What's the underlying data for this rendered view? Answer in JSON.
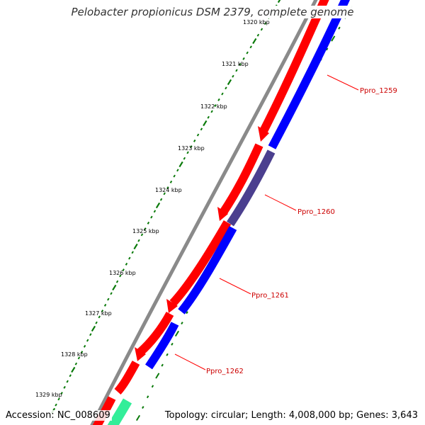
{
  "title": "Pelobacter propionicus DSM 2379, complete genome",
  "accession": "Accession: NC_008609",
  "topology": "Topology: circular; Length: 4,008,000 bp; Genes: 3,643",
  "colors": {
    "backbone": "#8a8a8a",
    "forward_strand": "#ff0000",
    "reverse_strand": "#0000ff",
    "highlighted_gene": "#4b3f8f",
    "other_gene": "#33ee99",
    "tick": "#0a7a0a",
    "gene_label": "#cc0000"
  },
  "kbp_labels": [
    "1320 kbp",
    "1321 kbp",
    "1322 kbp",
    "1323 kbp",
    "1324 kbp",
    "1325 kbp",
    "1326 kbp",
    "1327 kbp",
    "1328 kbp",
    "1329 kbp"
  ],
  "gene_labels": [
    "Ppro_1259",
    "Ppro_1260",
    "Ppro_1261",
    "Ppro_1262"
  ]
}
